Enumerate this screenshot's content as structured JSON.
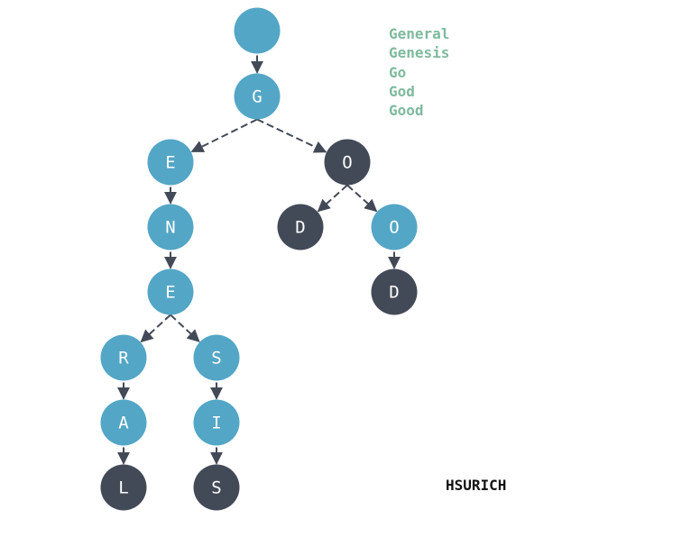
{
  "words": [
    "General",
    "Genesis",
    "Go",
    "God",
    "Good"
  ],
  "author": "HSURICH",
  "colors": {
    "prefix_node": "#53a6c6",
    "terminal_node": "#434a57",
    "edge": "#434a57",
    "word_list": "#7fba9d",
    "label": "#ffffff"
  },
  "trie": {
    "root": {
      "label": "",
      "terminal": false,
      "children": [
        "g"
      ]
    },
    "g": {
      "label": "G",
      "terminal": false,
      "children": [
        "ge",
        "go"
      ]
    },
    "ge": {
      "label": "E",
      "terminal": false,
      "children": [
        "gen"
      ]
    },
    "gen": {
      "label": "N",
      "terminal": false,
      "children": [
        "gene"
      ]
    },
    "gene": {
      "label": "E",
      "terminal": false,
      "children": [
        "gener",
        "genes"
      ]
    },
    "gener": {
      "label": "R",
      "terminal": false,
      "children": [
        "genera"
      ]
    },
    "genera": {
      "label": "A",
      "terminal": false,
      "children": [
        "general"
      ]
    },
    "general": {
      "label": "L",
      "terminal": true,
      "children": []
    },
    "genes": {
      "label": "S",
      "terminal": false,
      "children": [
        "genesi"
      ]
    },
    "genesi": {
      "label": "I",
      "terminal": false,
      "children": [
        "genesis"
      ]
    },
    "genesis": {
      "label": "S",
      "terminal": true,
      "children": []
    },
    "go": {
      "label": "O",
      "terminal": true,
      "children": [
        "god",
        "goo"
      ]
    },
    "god": {
      "label": "D",
      "terminal": true,
      "children": []
    },
    "goo": {
      "label": "O",
      "terminal": false,
      "children": [
        "good"
      ]
    },
    "good": {
      "label": "D",
      "terminal": true,
      "children": []
    }
  }
}
